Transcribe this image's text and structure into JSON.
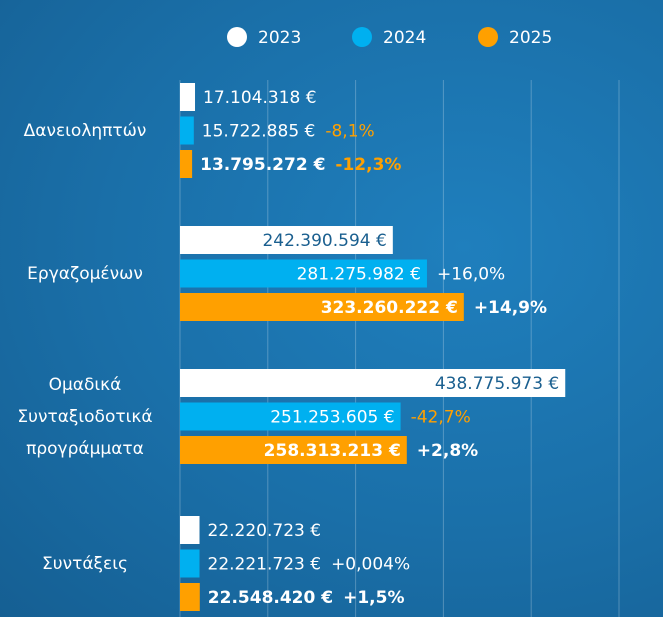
{
  "chart_data": {
    "type": "hbar",
    "categories": [
      "Δανειοληπτών",
      "Εργαζομένων",
      "Ομαδικά Συνταξιοδοτικά προγράμματα",
      "Συντάξεις"
    ],
    "xlim": [
      0,
      500000000
    ],
    "xticks": [
      0,
      100000000,
      200000000,
      300000000,
      400000000,
      500000000
    ],
    "grid": true,
    "legend": "top",
    "series": [
      {
        "name": "2023",
        "color": "#ffffff",
        "values": [
          17104318,
          242390594,
          438775973,
          22220723
        ],
        "value_labels": [
          "17.104.318 €",
          "242.390.594 €",
          "438.775.973 €",
          "22.220.723 €"
        ]
      },
      {
        "name": "2024",
        "color": "#00b0f0",
        "values": [
          15722885,
          281275982,
          251253605,
          22221723
        ],
        "value_labels": [
          "15.722.885 €",
          "281.275.982 €",
          "251.253.605 €",
          "22.221.723 €"
        ],
        "changes": [
          -8.1,
          16.0,
          -42.7,
          0.004
        ],
        "change_labels": [
          "-8,1%",
          "+16,0%",
          "-42,7%",
          "+0,004%"
        ]
      },
      {
        "name": "2025",
        "color": "#ffa000",
        "bold": true,
        "values": [
          13795272,
          323260222,
          258313213,
          22548420
        ],
        "value_labels": [
          "13.795.272 €",
          "323.260.222 €",
          "258.313.213 €",
          "22.548.420 €"
        ],
        "changes": [
          -12.3,
          14.9,
          2.8,
          1.5
        ],
        "change_labels": [
          "-12,3%",
          "+14,9%",
          "+2,8%",
          "+1,5%"
        ]
      }
    ]
  }
}
